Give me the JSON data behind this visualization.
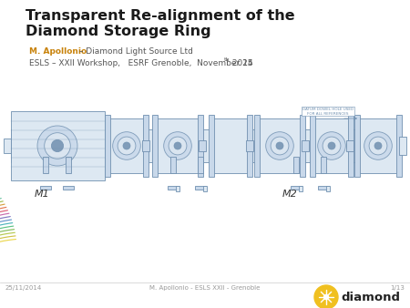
{
  "title_line1": "Transparent Re-alignment of the",
  "title_line2": "Diamond Storage Ring",
  "author_name": "M. Apollonio",
  "author_rest": " – Diamond Light Source Ltd",
  "workshop_line": "ESLS – XXII Workshop,   ESRF Grenoble,  November 25",
  "workshop_sup": "th",
  "workshop_year": " 2014",
  "footer_left": "25/11/2014",
  "footer_center": "M. Apollonio - ESLS XXII - Grenoble",
  "footer_right": "1/13",
  "m1_label": "M1",
  "m2_label": "M2",
  "bg_color": "#ffffff",
  "title_color": "#1a1a1a",
  "author_name_color": "#c8820a",
  "author_rest_color": "#555555",
  "workshop_color": "#555555",
  "footer_color": "#999999",
  "label_color": "#333333",
  "diagram_color": "#7090b0",
  "diagram_face": "#dde8f2",
  "diagram_face2": "#c8d8ea",
  "diamond_yellow": "#f0c020",
  "cable_colors": [
    "#e8d030",
    "#c8b828",
    "#a8c030",
    "#70b040",
    "#40b870",
    "#30a8b0",
    "#4880c0",
    "#7060b8",
    "#c050a0",
    "#d84060",
    "#e06030",
    "#d09020",
    "#90b030",
    "#50b890",
    "#3090c0",
    "#6050c0"
  ]
}
